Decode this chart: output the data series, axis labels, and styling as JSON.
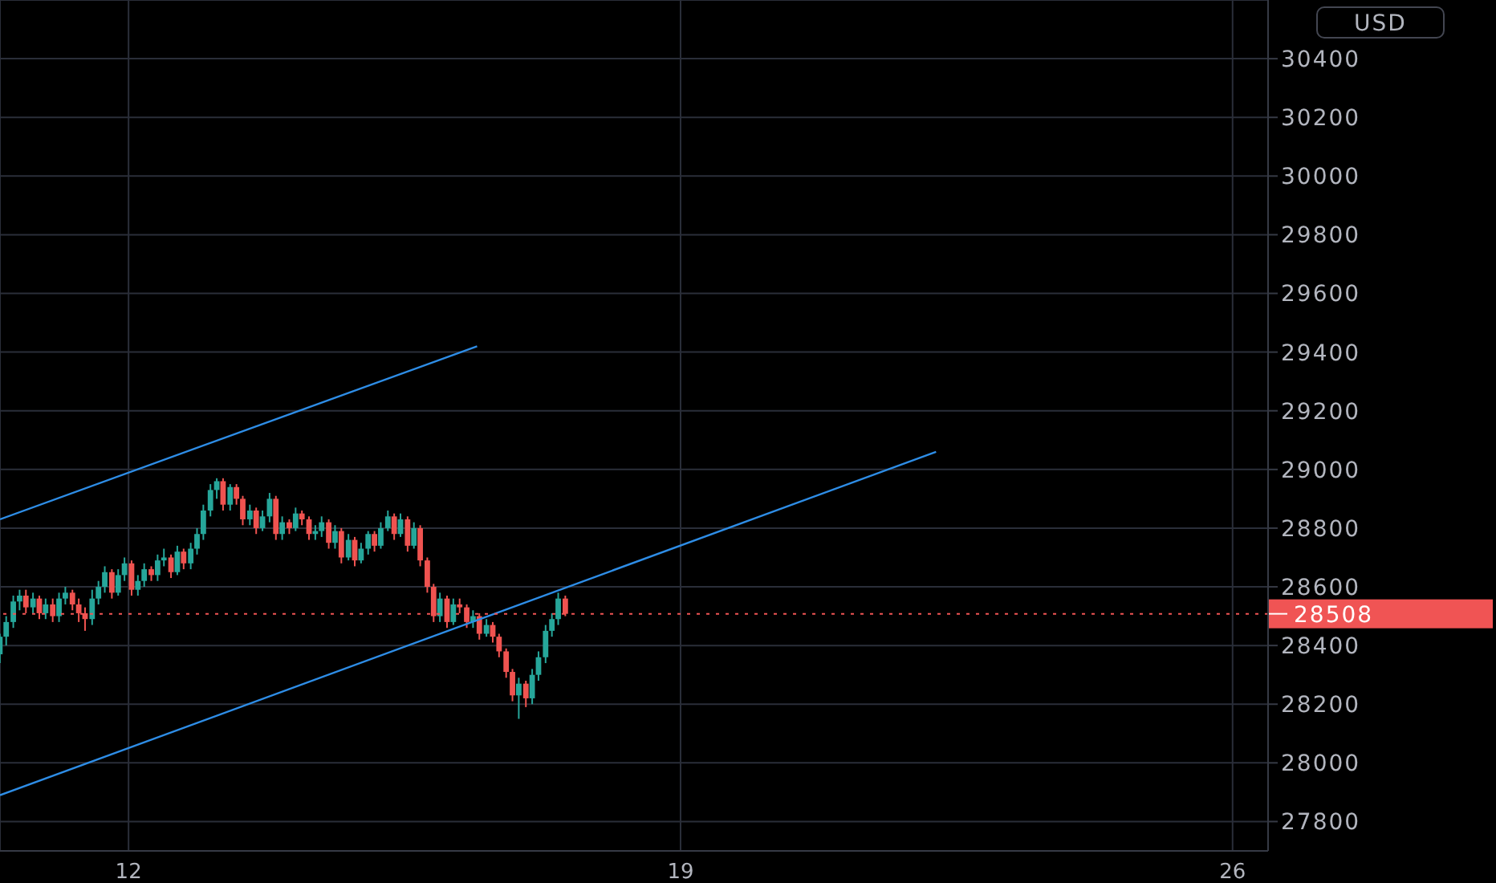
{
  "chart_data": {
    "type": "candlestick",
    "ylabel": "USD",
    "xlim": [
      10.37,
      26.45
    ],
    "xticks": [
      12,
      19,
      26
    ],
    "ylim": [
      27700,
      30600
    ],
    "yticks": [
      27800,
      28000,
      28200,
      28400,
      28600,
      28800,
      29000,
      29200,
      29400,
      29600,
      29800,
      30000,
      30200,
      30400
    ],
    "grid": true,
    "colors": [
      "#26a69a",
      "#26a69a",
      "#26a69a",
      "#26a69a",
      "#ef5350",
      "#26a69a",
      "#ef5350",
      "#26a69a",
      "#ef5350",
      "#26a69a",
      "#26a69a",
      "#ef5350",
      "#ef5350",
      "#ef5350",
      "#26a69a",
      "#26a69a",
      "#26a69a",
      "#ef5350",
      "#26a69a",
      "#26a69a",
      "#ef5350",
      "#26a69a",
      "#26a69a",
      "#ef5350",
      "#26a69a",
      "#26a69a",
      "#ef5350",
      "#26a69a",
      "#ef5350",
      "#26a69a",
      "#26a69a",
      "#26a69a",
      "#26a69a",
      "#26a69a",
      "#ef5350",
      "#26a69a",
      "#ef5350",
      "#ef5350",
      "#26a69a",
      "#ef5350",
      "#26a69a",
      "#26a69a",
      "#ef5350",
      "#26a69a",
      "#ef5350",
      "#26a69a",
      "#ef5350",
      "#ef5350",
      "#26a69a",
      "#26a69a",
      "#ef5350",
      "#26a69a",
      "#ef5350",
      "#26a69a",
      "#ef5350",
      "#26a69a",
      "#26a69a",
      "#ef5350",
      "#26a69a",
      "#26a69a",
      "#ef5350",
      "#26a69a",
      "#ef5350",
      "#26a69a",
      "#ef5350",
      "#ef5350",
      "#ef5350",
      "#26a69a",
      "#ef5350",
      "#26a69a",
      "#ef5350",
      "#ef5350",
      "#26a69a",
      "#ef5350",
      "#26a69a",
      "#ef5350",
      "#ef5350",
      "#ef5350",
      "#ef5350",
      "#26a69a",
      "#ef5350",
      "#26a69a",
      "#26a69a",
      "#26a69a",
      "#26a69a",
      "#26a69a",
      "#ef5350"
    ],
    "x": [
      10.37,
      10.45,
      10.54,
      10.62,
      10.7,
      10.79,
      10.87,
      10.95,
      11.04,
      11.12,
      11.2,
      11.29,
      11.37,
      11.45,
      11.54,
      11.62,
      11.7,
      11.79,
      11.87,
      11.95,
      12.04,
      12.12,
      12.2,
      12.29,
      12.37,
      12.45,
      12.54,
      12.62,
      12.7,
      12.79,
      12.87,
      12.95,
      13.04,
      13.12,
      13.2,
      13.29,
      13.37,
      13.45,
      13.54,
      13.62,
      13.7,
      13.79,
      13.87,
      13.95,
      14.04,
      14.12,
      14.2,
      14.29,
      14.37,
      14.45,
      14.54,
      14.62,
      14.7,
      14.79,
      14.87,
      14.95,
      15.04,
      15.12,
      15.2,
      15.29,
      15.37,
      15.45,
      15.54,
      15.62,
      15.7,
      15.79,
      15.87,
      15.95,
      16.04,
      16.12,
      16.2,
      16.29,
      16.37,
      16.45,
      16.54,
      16.62,
      16.7,
      16.79,
      16.87,
      16.95,
      17.04,
      17.12,
      17.2,
      17.29,
      17.37,
      17.45,
      17.54
    ],
    "ohlc": [
      [
        28370,
        28440,
        28340,
        28430
      ],
      [
        28430,
        28500,
        28400,
        28480
      ],
      [
        28480,
        28570,
        28460,
        28550
      ],
      [
        28550,
        28590,
        28520,
        28570
      ],
      [
        28570,
        28590,
        28510,
        28530
      ],
      [
        28530,
        28580,
        28510,
        28560
      ],
      [
        28560,
        28570,
        28490,
        28510
      ],
      [
        28510,
        28560,
        28490,
        28540
      ],
      [
        28540,
        28560,
        28480,
        28500
      ],
      [
        28500,
        28580,
        28480,
        28560
      ],
      [
        28560,
        28600,
        28540,
        28580
      ],
      [
        28580,
        28590,
        28520,
        28540
      ],
      [
        28540,
        28560,
        28480,
        28510
      ],
      [
        28510,
        28530,
        28450,
        28490
      ],
      [
        28490,
        28590,
        28470,
        28560
      ],
      [
        28560,
        28620,
        28540,
        28600
      ],
      [
        28600,
        28670,
        28580,
        28650
      ],
      [
        28650,
        28660,
        28560,
        28580
      ],
      [
        28580,
        28660,
        28570,
        28640
      ],
      [
        28640,
        28700,
        28620,
        28680
      ],
      [
        28680,
        28690,
        28570,
        28590
      ],
      [
        28590,
        28640,
        28570,
        28620
      ],
      [
        28620,
        28680,
        28600,
        28660
      ],
      [
        28660,
        28670,
        28620,
        28640
      ],
      [
        28640,
        28710,
        28620,
        28690
      ],
      [
        28690,
        28730,
        28670,
        28700
      ],
      [
        28700,
        28710,
        28630,
        28650
      ],
      [
        28650,
        28740,
        28640,
        28720
      ],
      [
        28720,
        28730,
        28660,
        28680
      ],
      [
        28680,
        28750,
        28660,
        28730
      ],
      [
        28730,
        28800,
        28710,
        28780
      ],
      [
        28780,
        28880,
        28760,
        28860
      ],
      [
        28860,
        28950,
        28840,
        28930
      ],
      [
        28930,
        28970,
        28900,
        28960
      ],
      [
        28960,
        28970,
        28860,
        28880
      ],
      [
        28880,
        28950,
        28860,
        28940
      ],
      [
        28940,
        28950,
        28880,
        28900
      ],
      [
        28900,
        28910,
        28810,
        28830
      ],
      [
        28830,
        28880,
        28810,
        28860
      ],
      [
        28860,
        28870,
        28780,
        28800
      ],
      [
        28800,
        28860,
        28790,
        28840
      ],
      [
        28840,
        28920,
        28820,
        28900
      ],
      [
        28900,
        28910,
        28760,
        28780
      ],
      [
        28780,
        28840,
        28760,
        28820
      ],
      [
        28820,
        28830,
        28780,
        28800
      ],
      [
        28800,
        28870,
        28790,
        28850
      ],
      [
        28850,
        28860,
        28810,
        28830
      ],
      [
        28830,
        28840,
        28760,
        28780
      ],
      [
        28780,
        28810,
        28760,
        28790
      ],
      [
        28790,
        28840,
        28770,
        28820
      ],
      [
        28820,
        28830,
        28730,
        28750
      ],
      [
        28750,
        28810,
        28730,
        28790
      ],
      [
        28790,
        28800,
        28680,
        28700
      ],
      [
        28700,
        28780,
        28690,
        28760
      ],
      [
        28760,
        28770,
        28670,
        28690
      ],
      [
        28690,
        28750,
        28680,
        28730
      ],
      [
        28730,
        28790,
        28710,
        28780
      ],
      [
        28780,
        28790,
        28720,
        28740
      ],
      [
        28740,
        28820,
        28730,
        28800
      ],
      [
        28800,
        28860,
        28790,
        28840
      ],
      [
        28840,
        28850,
        28760,
        28780
      ],
      [
        28780,
        28850,
        28770,
        28830
      ],
      [
        28830,
        28840,
        28720,
        28740
      ],
      [
        28740,
        28820,
        28730,
        28800
      ],
      [
        28800,
        28810,
        28670,
        28690
      ],
      [
        28690,
        28700,
        28580,
        28600
      ],
      [
        28600,
        28610,
        28480,
        28500
      ],
      [
        28500,
        28580,
        28480,
        28560
      ],
      [
        28560,
        28570,
        28460,
        28480
      ],
      [
        28480,
        28560,
        28470,
        28540
      ],
      [
        28540,
        28560,
        28510,
        28530
      ],
      [
        28530,
        28540,
        28460,
        28480
      ],
      [
        28480,
        28520,
        28460,
        28500
      ],
      [
        28500,
        28510,
        28420,
        28440
      ],
      [
        28440,
        28490,
        28430,
        28470
      ],
      [
        28470,
        28480,
        28410,
        28430
      ],
      [
        28430,
        28440,
        28360,
        28380
      ],
      [
        28380,
        28390,
        28290,
        28310
      ],
      [
        28310,
        28320,
        28210,
        28230
      ],
      [
        28230,
        28290,
        28150,
        28270
      ],
      [
        28270,
        28280,
        28190,
        28220
      ],
      [
        28220,
        28320,
        28200,
        28300
      ],
      [
        28300,
        28380,
        28280,
        28360
      ],
      [
        28360,
        28470,
        28340,
        28450
      ],
      [
        28450,
        28510,
        28430,
        28490
      ],
      [
        28490,
        28580,
        28470,
        28560
      ],
      [
        28560,
        28570,
        28500,
        28508
      ]
    ],
    "series": [
      {
        "type": "line",
        "color": "#2e8de6",
        "x": [
          10.37,
          16.42
        ],
        "values": [
          28830,
          29420
        ]
      },
      {
        "type": "line",
        "color": "#2e8de6",
        "x": [
          10.37,
          22.24
        ],
        "values": [
          27890,
          29060
        ]
      }
    ],
    "ref_lines": [
      {
        "axis": "y",
        "value": 28508,
        "label": "28508",
        "color": "#f05454",
        "line_style": "dotted"
      }
    ]
  }
}
